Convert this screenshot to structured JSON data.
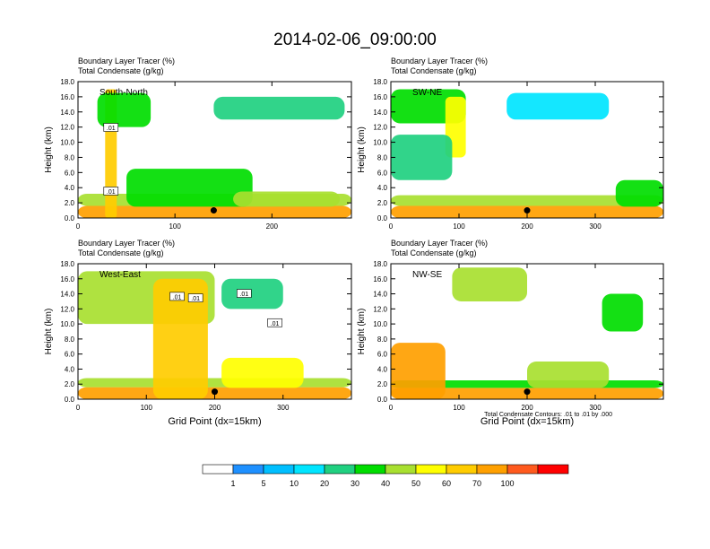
{
  "figure_title": "2014-02-06_09:00:00",
  "shared": {
    "subtitle_line1": "Boundary Layer Tracer   (%)",
    "subtitle_line2": "Total Condensate   (g/kg)",
    "ylabel": "Height (km)",
    "xlabel": "Grid Point (dx=15km)",
    "contour_note": "Total Condensate Contours: .01 to .01 by .000",
    "contour_label": ".01"
  },
  "colorbar": {
    "labels": [
      "1",
      "5",
      "10",
      "20",
      "30",
      "40",
      "50",
      "60",
      "70",
      "100"
    ],
    "colors": [
      "#ffffff",
      "#1e90ff",
      "#00bfff",
      "#00e5ff",
      "#20d080",
      "#00dd00",
      "#a8e030",
      "#ffff00",
      "#ffcc00",
      "#ffa000",
      "#ff5a1e",
      "#ff0000"
    ]
  },
  "chart_data": [
    {
      "type": "heatmap",
      "panel_label": "South-North",
      "title": "Boundary Layer Tracer (%) / Total Condensate (g/kg)",
      "xlabel": "",
      "ylabel": "Height (km)",
      "xlim": [
        0,
        282
      ],
      "ylim": [
        0,
        18
      ],
      "xticks": [
        0,
        100,
        200
      ],
      "yticks": [
        0,
        2,
        4,
        6,
        8,
        10,
        12,
        14,
        16,
        18
      ],
      "xticklabels": [
        "0",
        "100",
        "200"
      ],
      "yticklabels": [
        "0.0",
        "2.0",
        "4.0",
        "6.0",
        "8.0",
        "10.0",
        "12.0",
        "14.0",
        "16.0",
        "18.0"
      ],
      "marker": {
        "x": 140,
        "y": 1.0
      },
      "contour_labels": [
        {
          "x": 34,
          "y": 11.9,
          "text": ".01"
        },
        {
          "x": 34,
          "y": 3.5,
          "text": ".01"
        }
      ],
      "blobs": [
        {
          "x0": 0,
          "x1": 282,
          "y0": 0,
          "y1": 1.6,
          "v": 80
        },
        {
          "x0": 0,
          "x1": 282,
          "y0": 1.6,
          "y1": 3.2,
          "v": 40
        },
        {
          "x0": 50,
          "x1": 180,
          "y0": 1.5,
          "y1": 6.5,
          "v": 30
        },
        {
          "x0": 28,
          "x1": 40,
          "y0": 0,
          "y1": 17,
          "v": 60
        },
        {
          "x0": 20,
          "x1": 75,
          "y0": 12,
          "y1": 16.5,
          "v": 35
        },
        {
          "x0": 140,
          "x1": 275,
          "y0": 13,
          "y1": 16,
          "v": 20
        },
        {
          "x0": 160,
          "x1": 270,
          "y0": 1.5,
          "y1": 3.5,
          "v": 45
        }
      ]
    },
    {
      "type": "heatmap",
      "panel_label": "SW-NE",
      "title": "Boundary Layer Tracer (%) / Total Condensate (g/kg)",
      "xlabel": "",
      "ylabel": "Height (km)",
      "xlim": [
        0,
        400
      ],
      "ylim": [
        0,
        18
      ],
      "xticks": [
        0,
        100,
        200,
        300
      ],
      "yticks": [
        0,
        2,
        4,
        6,
        8,
        10,
        12,
        14,
        16,
        18
      ],
      "xticklabels": [
        "0",
        "100",
        "200",
        "300"
      ],
      "yticklabels": [
        "0.0",
        "2.0",
        "4.0",
        "6.0",
        "8.0",
        "10.0",
        "12.0",
        "14.0",
        "16.0",
        "18.0"
      ],
      "marker": {
        "x": 200,
        "y": 1.0
      },
      "contour_labels": [],
      "blobs": [
        {
          "x0": 0,
          "x1": 400,
          "y0": 0,
          "y1": 1.6,
          "v": 80
        },
        {
          "x0": 0,
          "x1": 400,
          "y0": 1.6,
          "y1": 3.0,
          "v": 40
        },
        {
          "x0": 0,
          "x1": 110,
          "y0": 12.5,
          "y1": 17,
          "v": 35
        },
        {
          "x0": 80,
          "x1": 110,
          "y0": 8,
          "y1": 16,
          "v": 55
        },
        {
          "x0": 0,
          "x1": 90,
          "y0": 5,
          "y1": 11,
          "v": 20
        },
        {
          "x0": 170,
          "x1": 320,
          "y0": 13,
          "y1": 16.5,
          "v": 15
        },
        {
          "x0": 330,
          "x1": 400,
          "y0": 1.5,
          "y1": 5,
          "v": 30
        }
      ]
    },
    {
      "type": "heatmap",
      "panel_label": "West-East",
      "title": "Boundary Layer Tracer (%) / Total Condensate (g/kg)",
      "xlabel": "Grid Point (dx=15km)",
      "ylabel": "Height (km)",
      "xlim": [
        0,
        400
      ],
      "ylim": [
        0,
        18
      ],
      "xticks": [
        0,
        100,
        200,
        300
      ],
      "yticks": [
        0,
        2,
        4,
        6,
        8,
        10,
        12,
        14,
        16,
        18
      ],
      "xticklabels": [
        "0",
        "100",
        "200",
        "300"
      ],
      "yticklabels": [
        "0.0",
        "2.0",
        "4.0",
        "6.0",
        "8.0",
        "10.0",
        "12.0",
        "14.0",
        "16.0",
        "18.0"
      ],
      "marker": {
        "x": 200,
        "y": 1.0
      },
      "contour_labels": [
        {
          "x": 145,
          "y": 13.6,
          "text": ".01"
        },
        {
          "x": 172,
          "y": 13.4,
          "text": ".01"
        },
        {
          "x": 243,
          "y": 14.0,
          "text": ".01"
        },
        {
          "x": 288,
          "y": 10.1,
          "text": ".01"
        }
      ],
      "blobs": [
        {
          "x0": 0,
          "x1": 400,
          "y0": 0,
          "y1": 1.6,
          "v": 80
        },
        {
          "x0": 0,
          "x1": 400,
          "y0": 1.6,
          "y1": 2.8,
          "v": 40
        },
        {
          "x0": 0,
          "x1": 200,
          "y0": 10,
          "y1": 17,
          "v": 45
        },
        {
          "x0": 110,
          "x1": 190,
          "y0": 0,
          "y1": 16,
          "v": 65
        },
        {
          "x0": 210,
          "x1": 300,
          "y0": 12,
          "y1": 16,
          "v": 20
        },
        {
          "x0": 210,
          "x1": 330,
          "y0": 1.5,
          "y1": 5.5,
          "v": 55
        }
      ]
    },
    {
      "type": "heatmap",
      "panel_label": "NW-SE",
      "title": "Boundary Layer Tracer (%) / Total Condensate (g/kg)",
      "xlabel": "Grid Point (dx=15km)",
      "ylabel": "Height (km)",
      "xlim": [
        0,
        400
      ],
      "ylim": [
        0,
        18
      ],
      "xticks": [
        0,
        100,
        200,
        300
      ],
      "yticks": [
        0,
        2,
        4,
        6,
        8,
        10,
        12,
        14,
        16,
        18
      ],
      "xticklabels": [
        "0",
        "100",
        "200",
        "300"
      ],
      "yticklabels": [
        "0.0",
        "2.0",
        "4.0",
        "6.0",
        "8.0",
        "10.0",
        "12.0",
        "14.0",
        "16.0",
        "18.0"
      ],
      "marker": {
        "x": 200,
        "y": 1.0
      },
      "contour_labels": [],
      "blobs": [
        {
          "x0": 0,
          "x1": 400,
          "y0": 0,
          "y1": 1.5,
          "v": 75
        },
        {
          "x0": 0,
          "x1": 400,
          "y0": 1.5,
          "y1": 2.5,
          "v": 35
        },
        {
          "x0": 0,
          "x1": 80,
          "y0": 0,
          "y1": 7.5,
          "v": 70
        },
        {
          "x0": 90,
          "x1": 200,
          "y0": 13,
          "y1": 17.5,
          "v": 40
        },
        {
          "x0": 310,
          "x1": 370,
          "y0": 9,
          "y1": 14,
          "v": 35
        },
        {
          "x0": 200,
          "x1": 320,
          "y0": 1.5,
          "y1": 5,
          "v": 45
        }
      ]
    }
  ]
}
